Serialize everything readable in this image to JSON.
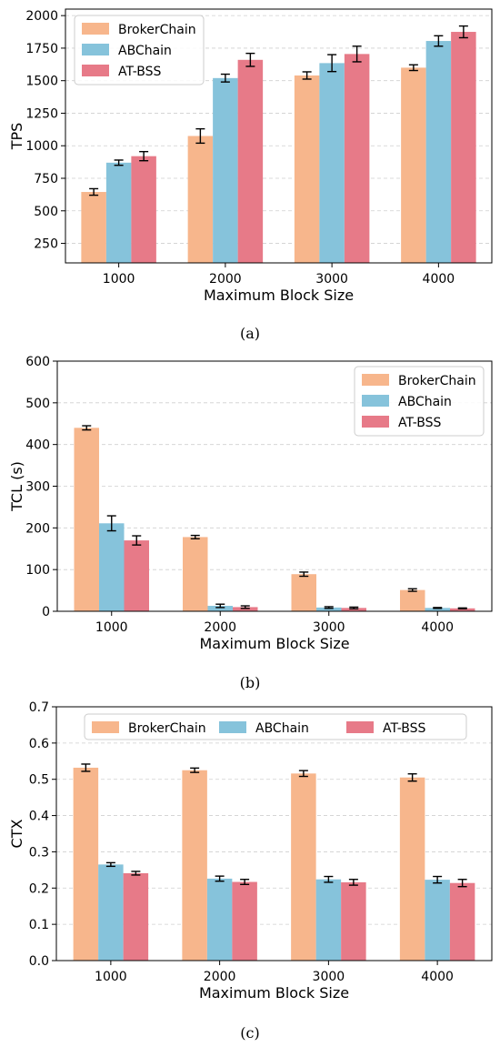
{
  "colors": {
    "BrokerChain": "#F7B68C",
    "ABChain": "#86C3DB",
    "AT-BSS": "#E77A88",
    "grid": "#cfcfcf",
    "axis": "#000000"
  },
  "chart_data": [
    {
      "type": "bar",
      "caption": "(a)",
      "categories": [
        "1000",
        "2000",
        "3000",
        "4000"
      ],
      "xlabel": "Maximum Block Size",
      "ylabel": "TPS",
      "ylim": [
        100,
        2050
      ],
      "yticks": [
        250,
        500,
        750,
        1000,
        1250,
        1500,
        1750,
        2000
      ],
      "grid": true,
      "legend": "top-left",
      "legend_layout": "vertical",
      "series": [
        {
          "name": "BrokerChain",
          "values": [
            645,
            1075,
            1540,
            1600
          ],
          "errors": [
            25,
            55,
            28,
            22
          ]
        },
        {
          "name": "ABChain",
          "values": [
            870,
            1520,
            1635,
            1805
          ],
          "errors": [
            20,
            30,
            65,
            40
          ]
        },
        {
          "name": "AT-BSS",
          "values": [
            920,
            1660,
            1705,
            1875
          ],
          "errors": [
            35,
            50,
            60,
            45
          ]
        }
      ]
    },
    {
      "type": "bar",
      "caption": "(b)",
      "categories": [
        "1000",
        "2000",
        "3000",
        "4000"
      ],
      "xlabel": "Maximum Block Size",
      "ylabel": "TCL (s)",
      "ylim": [
        0,
        600
      ],
      "yticks": [
        0,
        100,
        200,
        300,
        400,
        500,
        600
      ],
      "grid": true,
      "legend": "top-right",
      "legend_layout": "vertical",
      "series": [
        {
          "name": "BrokerChain",
          "values": [
            440,
            178,
            89,
            51
          ],
          "errors": [
            5,
            4,
            5,
            3
          ]
        },
        {
          "name": "ABChain",
          "values": [
            211,
            13,
            9,
            8
          ],
          "errors": [
            18,
            4,
            2,
            1
          ]
        },
        {
          "name": "AT-BSS",
          "values": [
            170,
            10,
            8,
            7
          ],
          "errors": [
            11,
            3,
            2,
            1
          ]
        }
      ]
    },
    {
      "type": "bar",
      "caption": "(c)",
      "categories": [
        "1000",
        "2000",
        "3000",
        "4000"
      ],
      "xlabel": "Maximum Block Size",
      "ylabel": "CTX",
      "ylim": [
        0,
        0.7
      ],
      "yticks": [
        0.0,
        0.1,
        0.2,
        0.3,
        0.4,
        0.5,
        0.6,
        0.7
      ],
      "grid": true,
      "legend": "top-center",
      "legend_layout": "horizontal",
      "series": [
        {
          "name": "BrokerChain",
          "values": [
            0.532,
            0.525,
            0.516,
            0.505
          ],
          "errors": [
            0.01,
            0.006,
            0.008,
            0.01
          ]
        },
        {
          "name": "ABChain",
          "values": [
            0.265,
            0.226,
            0.224,
            0.223
          ],
          "errors": [
            0.005,
            0.007,
            0.008,
            0.009
          ]
        },
        {
          "name": "AT-BSS",
          "values": [
            0.241,
            0.217,
            0.216,
            0.214
          ],
          "errors": [
            0.005,
            0.007,
            0.008,
            0.01
          ]
        }
      ]
    }
  ]
}
